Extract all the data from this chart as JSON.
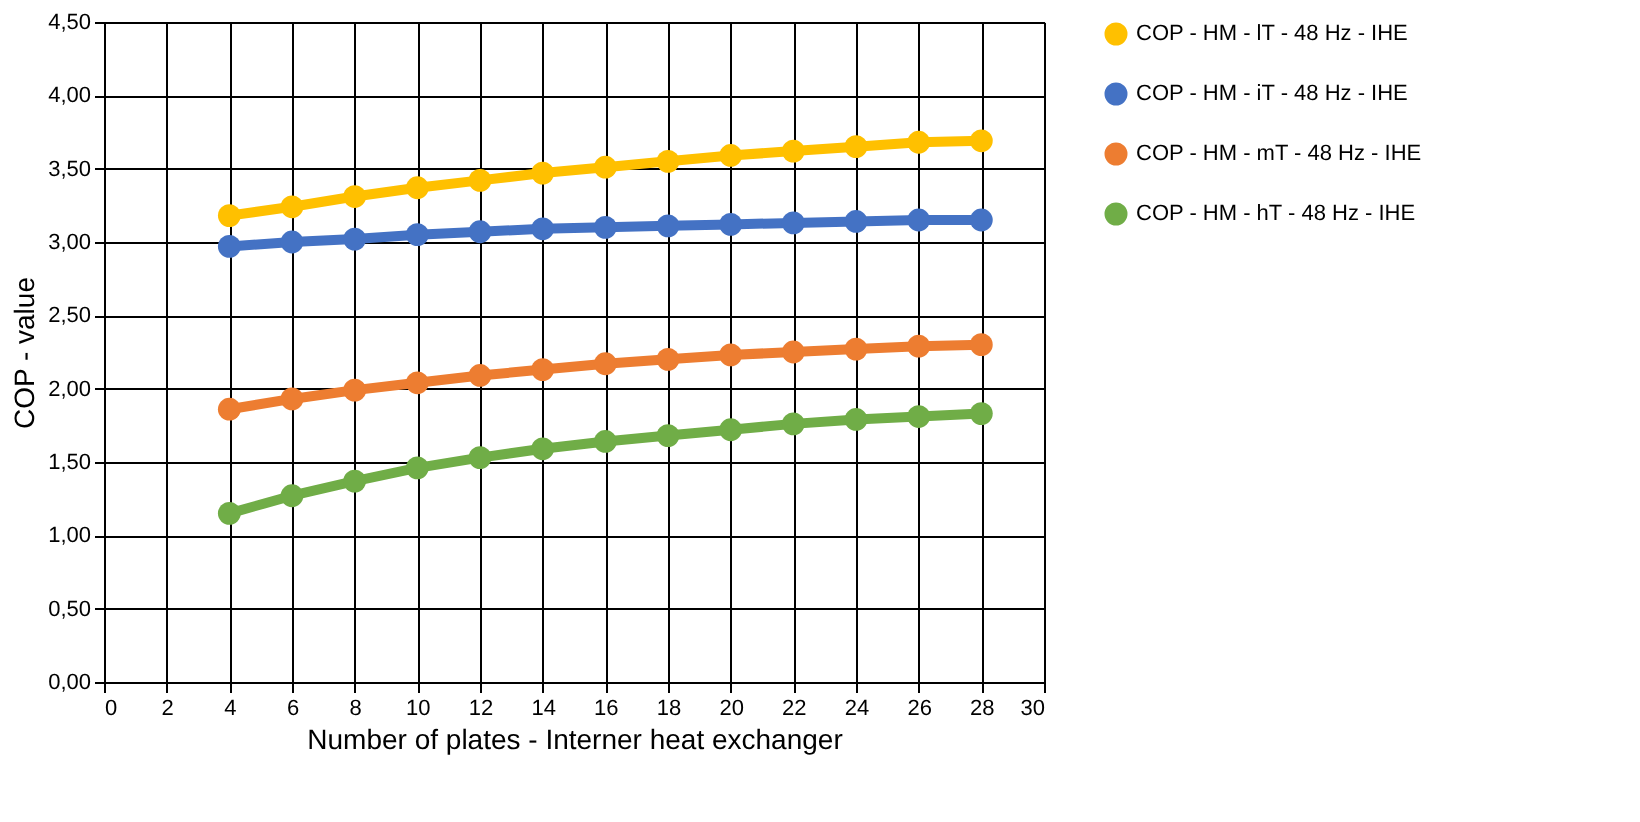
{
  "chart_data": {
    "type": "line",
    "xlabel": "Number of plates  - Interner heat exchanger",
    "ylabel": "COP - value",
    "x": [
      4,
      6,
      8,
      10,
      12,
      14,
      16,
      18,
      20,
      22,
      24,
      26,
      28
    ],
    "series": [
      {
        "name": "COP - HM - lT - 48 Hz - IHE",
        "color": "#ffc000",
        "values": [
          3.18,
          3.24,
          3.31,
          3.37,
          3.42,
          3.47,
          3.51,
          3.55,
          3.59,
          3.62,
          3.65,
          3.68,
          3.69
        ]
      },
      {
        "name": "COP - HM - iT - 48 Hz - IHE",
        "color": "#4472c4",
        "values": [
          2.97,
          3.0,
          3.02,
          3.05,
          3.07,
          3.09,
          3.1,
          3.11,
          3.12,
          3.13,
          3.14,
          3.15,
          3.15
        ]
      },
      {
        "name": "COP - HM - mT - 48 Hz - IHE",
        "color": "#ed7d31",
        "values": [
          1.86,
          1.93,
          1.99,
          2.04,
          2.09,
          2.13,
          2.17,
          2.2,
          2.23,
          2.25,
          2.27,
          2.29,
          2.3
        ]
      },
      {
        "name": "COP - HM - hT - 48 Hz - IHE",
        "color": "#70ad47",
        "values": [
          1.15,
          1.27,
          1.37,
          1.46,
          1.53,
          1.59,
          1.64,
          1.68,
          1.72,
          1.76,
          1.79,
          1.81,
          1.83
        ]
      }
    ],
    "xlim": [
      0,
      30
    ],
    "xticks": [
      0,
      2,
      4,
      6,
      8,
      10,
      12,
      14,
      16,
      18,
      20,
      22,
      24,
      26,
      28,
      30
    ],
    "ylim": [
      0,
      4.5
    ],
    "yticks": [
      {
        "value": 0,
        "label": "0,00"
      },
      {
        "value": 0.5,
        "label": "0,50"
      },
      {
        "value": 1,
        "label": "1,00"
      },
      {
        "value": 1.5,
        "label": "1,50"
      },
      {
        "value": 2,
        "label": "2,00"
      },
      {
        "value": 2.5,
        "label": "2,50"
      },
      {
        "value": 3,
        "label": "3,00"
      },
      {
        "value": 3.5,
        "label": "3,50"
      },
      {
        "value": 4,
        "label": "4,00"
      },
      {
        "value": 4.5,
        "label": "4,50"
      }
    ],
    "grid": true,
    "legend": "right",
    "marker": "circle",
    "line_style": "solid"
  }
}
